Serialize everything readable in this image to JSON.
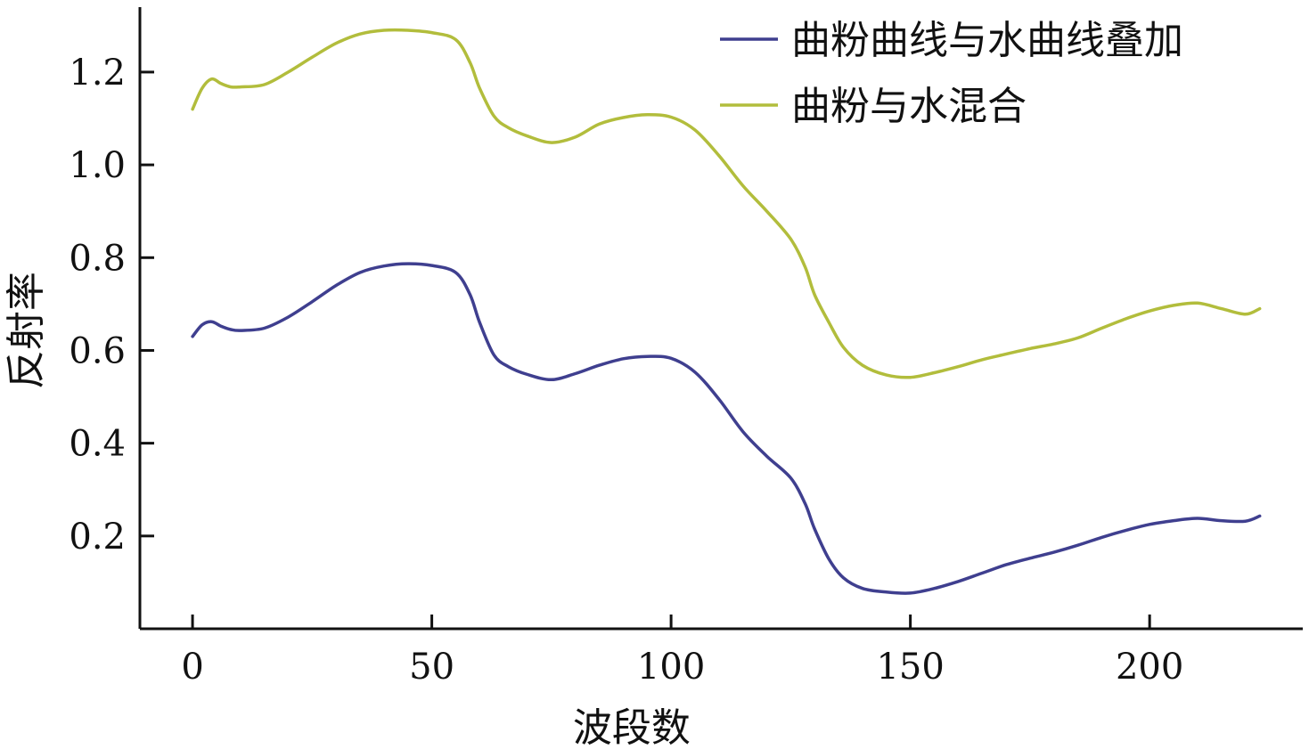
{
  "chart_data": {
    "type": "line",
    "xlabel": "波段数",
    "ylabel": "反射率",
    "xlim": [
      -11,
      232
    ],
    "ylim": [
      0.0,
      1.34
    ],
    "xticks": [
      0,
      50,
      100,
      150,
      200
    ],
    "xtick_labels": [
      "0",
      "50",
      "100",
      "150",
      "200"
    ],
    "yticks": [
      0.2,
      0.4,
      0.6,
      0.8,
      1.0,
      1.2
    ],
    "ytick_labels": [
      "0.2",
      "0.4",
      "0.6",
      "0.8",
      "1.0",
      "1.2"
    ],
    "grid": false,
    "legend_position": "top-right",
    "series": [
      {
        "name": "曲粉曲线与水曲线叠加",
        "color": "#3f3f8f",
        "x": [
          0,
          2,
          4,
          6,
          8,
          10,
          15,
          20,
          25,
          30,
          35,
          40,
          45,
          50,
          55,
          58,
          60,
          63,
          66,
          70,
          75,
          80,
          85,
          90,
          95,
          100,
          105,
          110,
          115,
          120,
          125,
          128,
          130,
          133,
          136,
          140,
          145,
          150,
          155,
          160,
          165,
          170,
          175,
          180,
          185,
          190,
          195,
          200,
          205,
          210,
          215,
          220,
          223
        ],
        "values": [
          0.63,
          0.655,
          0.662,
          0.652,
          0.645,
          0.643,
          0.648,
          0.672,
          0.705,
          0.74,
          0.768,
          0.782,
          0.787,
          0.783,
          0.768,
          0.72,
          0.66,
          0.59,
          0.565,
          0.548,
          0.537,
          0.55,
          0.568,
          0.582,
          0.587,
          0.583,
          0.553,
          0.495,
          0.425,
          0.372,
          0.325,
          0.27,
          0.215,
          0.15,
          0.11,
          0.087,
          0.079,
          0.077,
          0.087,
          0.102,
          0.12,
          0.138,
          0.152,
          0.165,
          0.18,
          0.197,
          0.212,
          0.225,
          0.233,
          0.238,
          0.233,
          0.232,
          0.243
        ]
      },
      {
        "name": "曲粉与水混合",
        "color": "#b2bd3c",
        "x": [
          0,
          2,
          4,
          6,
          8,
          10,
          15,
          20,
          25,
          30,
          35,
          40,
          45,
          50,
          55,
          58,
          60,
          63,
          66,
          70,
          75,
          80,
          85,
          90,
          95,
          100,
          105,
          110,
          115,
          120,
          125,
          128,
          130,
          133,
          136,
          140,
          145,
          150,
          155,
          160,
          165,
          170,
          175,
          180,
          185,
          190,
          195,
          200,
          205,
          210,
          215,
          220,
          223
        ],
        "values": [
          1.12,
          1.165,
          1.185,
          1.175,
          1.168,
          1.168,
          1.173,
          1.2,
          1.232,
          1.262,
          1.282,
          1.29,
          1.29,
          1.285,
          1.27,
          1.22,
          1.165,
          1.105,
          1.08,
          1.062,
          1.048,
          1.06,
          1.088,
          1.102,
          1.108,
          1.103,
          1.075,
          1.02,
          0.955,
          0.9,
          0.84,
          0.78,
          0.72,
          0.66,
          0.607,
          0.568,
          0.547,
          0.542,
          0.552,
          0.565,
          0.58,
          0.592,
          0.604,
          0.614,
          0.627,
          0.648,
          0.668,
          0.685,
          0.697,
          0.702,
          0.69,
          0.678,
          0.69
        ]
      }
    ]
  }
}
